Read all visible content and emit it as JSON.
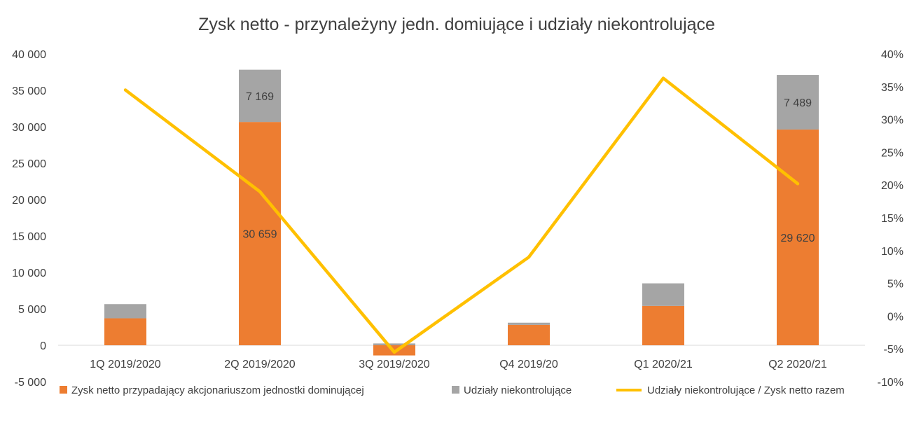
{
  "chart_data": {
    "type": "bar",
    "stacked": true,
    "title": "Zysk netto - przynależyny jedn. domiujące i udziały niekontrolujące",
    "categories": [
      "1Q 2019/2020",
      "2Q 2019/2020",
      "3Q 2019/2020",
      "Q4 2019/20",
      "Q1 2020/21",
      "Q2 2020/21"
    ],
    "series": [
      {
        "name": "Zysk netto przypadający akcjonariuszom jednostki dominującej",
        "type": "bar",
        "axis": "left",
        "color": "#ED7D31",
        "values": [
          3700,
          30659,
          -1400,
          2800,
          5400,
          29620
        ],
        "data_labels": [
          null,
          "30 659",
          null,
          null,
          null,
          "29 620"
        ]
      },
      {
        "name": "Udziały niekontrolujące",
        "type": "bar",
        "axis": "left",
        "color": "#A5A5A5",
        "values": [
          1950,
          7169,
          250,
          300,
          3100,
          7489
        ],
        "data_labels": [
          null,
          "7 169",
          null,
          null,
          null,
          "7 489"
        ]
      },
      {
        "name": "Udziały niekontrolujące / Zysk netto razem",
        "type": "line",
        "axis": "right",
        "color": "#FFC000",
        "values": [
          0.345,
          0.19,
          -0.055,
          0.09,
          0.363,
          0.202
        ]
      }
    ],
    "ylim": [
      -5000,
      40000
    ],
    "yticks": [
      -5000,
      0,
      5000,
      10000,
      15000,
      20000,
      25000,
      30000,
      35000,
      40000
    ],
    "ytick_labels": [
      "-5 000",
      "0",
      "5 000",
      "10 000",
      "15 000",
      "20 000",
      "25 000",
      "30 000",
      "35 000",
      "40 000"
    ],
    "y2lim": [
      -0.1,
      0.4
    ],
    "y2ticks": [
      -0.1,
      -0.05,
      0.0,
      0.05,
      0.1,
      0.15,
      0.2,
      0.25,
      0.3,
      0.35,
      0.4
    ],
    "y2tick_labels": [
      "-10%",
      "-5%",
      "0%",
      "5%",
      "10%",
      "15%",
      "20%",
      "25%",
      "30%",
      "35%",
      "40%"
    ],
    "grid": false,
    "legend_position": "bottom"
  }
}
